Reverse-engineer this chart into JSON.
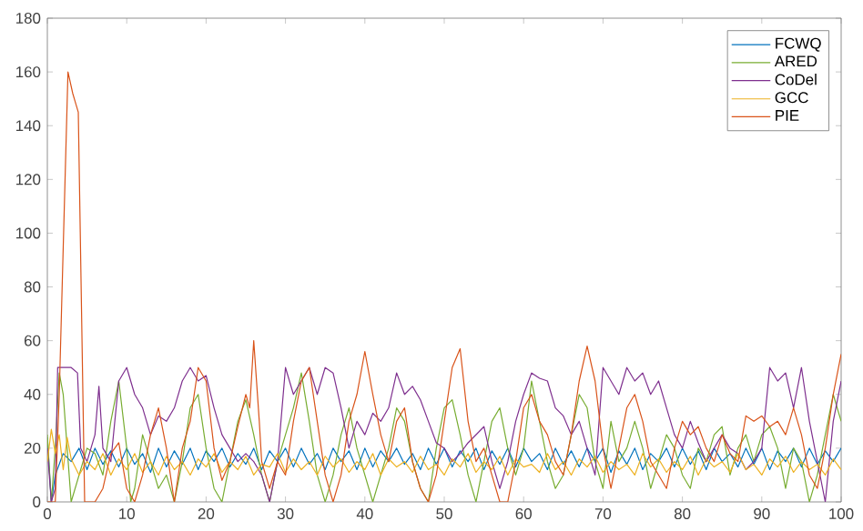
{
  "chart_data": {
    "type": "line",
    "xlim": [
      0,
      100
    ],
    "ylim": [
      0,
      180
    ],
    "xticks": [
      0,
      10,
      20,
      30,
      40,
      50,
      60,
      70,
      80,
      90,
      100
    ],
    "yticks": [
      0,
      20,
      40,
      60,
      80,
      100,
      120,
      140,
      160,
      180
    ],
    "grid": false,
    "legend": "top right",
    "line_style": "solid",
    "series": [
      {
        "name": "FCWQ",
        "color": "#0072bd",
        "x": [
          0,
          0.5,
          1,
          2,
          3,
          4,
          5,
          6,
          7,
          8,
          9,
          10,
          11,
          12,
          13,
          14,
          15,
          16,
          17,
          18,
          19,
          20,
          21,
          22,
          23,
          24,
          25,
          26,
          27,
          28,
          29,
          30,
          31,
          32,
          33,
          34,
          35,
          36,
          37,
          38,
          39,
          40,
          41,
          42,
          43,
          44,
          45,
          46,
          47,
          48,
          49,
          50,
          51,
          52,
          53,
          54,
          55,
          56,
          57,
          58,
          59,
          60,
          61,
          62,
          63,
          64,
          65,
          66,
          67,
          68,
          69,
          70,
          71,
          72,
          73,
          74,
          75,
          76,
          77,
          78,
          79,
          80,
          81,
          82,
          83,
          84,
          85,
          86,
          87,
          88,
          89,
          90,
          91,
          92,
          93,
          94,
          95,
          96,
          97,
          98,
          99,
          100
        ],
        "values": [
          24,
          0,
          10,
          18,
          15,
          20,
          12,
          20,
          14,
          19,
          13,
          20,
          14,
          18,
          11,
          20,
          13,
          19,
          14,
          20,
          12,
          19,
          15,
          20,
          13,
          18,
          14,
          20,
          12,
          19,
          15,
          20,
          13,
          20,
          14,
          18,
          12,
          20,
          15,
          19,
          12,
          20,
          13,
          19,
          15,
          20,
          14,
          18,
          12,
          20,
          14,
          20,
          13,
          19,
          15,
          20,
          12,
          19,
          14,
          20,
          13,
          20,
          15,
          18,
          12,
          20,
          14,
          19,
          13,
          20,
          15,
          20,
          11,
          19,
          14,
          20,
          12,
          18,
          15,
          20,
          13,
          20,
          14,
          19,
          12,
          20,
          15,
          18,
          13,
          20,
          14,
          20,
          12,
          19,
          15,
          20,
          13,
          20,
          14,
          19,
          15,
          20
        ]
      },
      {
        "name": "ARED",
        "color": "#77ac30",
        "x": [
          0,
          0.5,
          1,
          1.5,
          2,
          3,
          4,
          5,
          6,
          7,
          8,
          9,
          10,
          10.5,
          11,
          12,
          13,
          14,
          15,
          16,
          17,
          18,
          19,
          20,
          21,
          22,
          23,
          24,
          25,
          26,
          27,
          28,
          29,
          30,
          31,
          32,
          33,
          34,
          35,
          36,
          37,
          38,
          39,
          40,
          41,
          42,
          43,
          44,
          45,
          46,
          47,
          48,
          49,
          50,
          51,
          52,
          53,
          54,
          55,
          56,
          57,
          58,
          59,
          60,
          61,
          62,
          63,
          64,
          65,
          66,
          67,
          68,
          69,
          70,
          71,
          72,
          73,
          74,
          75,
          76,
          77,
          78,
          79,
          80,
          81,
          82,
          83,
          84,
          85,
          86,
          87,
          88,
          89,
          90,
          91,
          92,
          93,
          94,
          95,
          96,
          97,
          98,
          99,
          100
        ],
        "values": [
          25,
          0,
          20,
          48,
          40,
          0,
          10,
          20,
          18,
          10,
          30,
          45,
          20,
          0,
          5,
          25,
          15,
          5,
          10,
          0,
          15,
          35,
          40,
          20,
          5,
          0,
          15,
          30,
          38,
          25,
          10,
          0,
          15,
          25,
          35,
          48,
          30,
          10,
          0,
          10,
          25,
          35,
          20,
          10,
          0,
          10,
          20,
          35,
          30,
          15,
          5,
          0,
          20,
          35,
          38,
          25,
          10,
          0,
          15,
          30,
          35,
          20,
          10,
          20,
          45,
          30,
          15,
          5,
          10,
          25,
          40,
          35,
          15,
          5,
          30,
          15,
          20,
          30,
          20,
          5,
          15,
          25,
          20,
          10,
          5,
          20,
          15,
          25,
          28,
          10,
          20,
          25,
          15,
          25,
          28,
          20,
          5,
          20,
          15,
          0,
          10,
          25,
          40,
          30
        ]
      },
      {
        "name": "CoDel",
        "color": "#7e2f8e",
        "x": [
          0,
          0.5,
          1,
          1.3,
          3,
          3.8,
          4.2,
          5,
          6,
          6.5,
          7,
          8,
          9,
          10,
          11,
          12,
          13,
          14,
          15,
          16,
          17,
          18,
          19,
          20,
          21,
          22,
          23,
          24,
          25,
          26,
          27,
          28,
          29,
          30,
          31,
          32,
          33,
          34,
          35,
          36,
          37,
          38,
          39,
          40,
          41,
          42,
          43,
          44,
          45,
          46,
          47,
          48,
          49,
          50,
          51,
          52,
          53,
          54,
          55,
          56,
          57,
          58,
          59,
          60,
          61,
          62,
          63,
          64,
          65,
          66,
          67,
          68,
          69,
          70,
          71,
          72,
          73,
          74,
          75,
          76,
          77,
          78,
          79,
          80,
          81,
          82,
          83,
          84,
          85,
          86,
          87,
          88,
          89,
          90,
          91,
          92,
          93,
          94,
          95,
          96,
          97,
          98,
          99,
          100
        ],
        "values": [
          20,
          0,
          5,
          50,
          50,
          48,
          20,
          15,
          25,
          43,
          20,
          15,
          45,
          50,
          40,
          35,
          25,
          32,
          30,
          35,
          45,
          50,
          45,
          47,
          35,
          25,
          20,
          15,
          18,
          15,
          10,
          0,
          15,
          50,
          40,
          45,
          50,
          40,
          50,
          48,
          35,
          20,
          30,
          25,
          33,
          30,
          35,
          48,
          40,
          43,
          38,
          30,
          22,
          20,
          15,
          18,
          22,
          25,
          28,
          15,
          5,
          15,
          30,
          40,
          48,
          46,
          45,
          35,
          32,
          25,
          30,
          20,
          10,
          50,
          45,
          40,
          50,
          45,
          48,
          40,
          45,
          35,
          25,
          20,
          30,
          22,
          15,
          20,
          25,
          20,
          18,
          12,
          15,
          20,
          50,
          45,
          48,
          35,
          50,
          30,
          15,
          0,
          30,
          45
        ]
      },
      {
        "name": "GCC",
        "color": "#edb120",
        "x": [
          0,
          0.5,
          1,
          1.5,
          2,
          2.5,
          3,
          4,
          5,
          6,
          7,
          8,
          9,
          10,
          11,
          12,
          13,
          14,
          15,
          16,
          17,
          18,
          19,
          20,
          21,
          22,
          23,
          24,
          25,
          26,
          27,
          28,
          29,
          30,
          31,
          32,
          33,
          34,
          35,
          36,
          37,
          38,
          39,
          40,
          41,
          42,
          43,
          44,
          45,
          46,
          47,
          48,
          49,
          50,
          51,
          52,
          53,
          54,
          55,
          56,
          57,
          58,
          59,
          60,
          61,
          62,
          63,
          64,
          65,
          66,
          67,
          68,
          69,
          70,
          71,
          72,
          73,
          74,
          75,
          76,
          77,
          78,
          79,
          80,
          81,
          82,
          83,
          84,
          85,
          86,
          87,
          88,
          89,
          90,
          91,
          92,
          93,
          94,
          95,
          96,
          97,
          98,
          99,
          100
        ],
        "values": [
          15,
          27,
          18,
          25,
          12,
          24,
          16,
          10,
          15,
          12,
          18,
          10,
          16,
          12,
          18,
          11,
          15,
          10,
          17,
          12,
          15,
          10,
          16,
          13,
          18,
          11,
          15,
          12,
          17,
          10,
          14,
          13,
          18,
          11,
          16,
          12,
          15,
          10,
          17,
          13,
          16,
          11,
          15,
          12,
          18,
          10,
          16,
          13,
          15,
          11,
          17,
          12,
          14,
          10,
          16,
          13,
          18,
          11,
          15,
          12,
          17,
          10,
          16,
          13,
          14,
          11,
          18,
          12,
          15,
          10,
          16,
          13,
          17,
          11,
          15,
          12,
          14,
          10,
          18,
          13,
          16,
          11,
          15,
          12,
          17,
          10,
          16,
          13,
          15,
          11,
          18,
          12,
          14,
          10,
          16,
          13,
          17,
          11,
          15,
          12,
          14,
          10,
          16,
          12
        ]
      },
      {
        "name": "PIE",
        "color": "#d95319",
        "x": [
          0,
          1,
          1.5,
          2.6,
          3.2,
          3.6,
          3.9,
          4.7,
          6,
          7,
          8,
          9,
          10,
          11,
          12,
          13,
          14,
          15,
          16,
          17,
          18,
          19,
          20,
          21,
          22,
          23,
          24,
          25,
          25.5,
          26,
          26.7,
          27,
          28,
          29,
          30,
          31,
          32,
          33,
          34,
          35,
          36,
          37,
          38,
          39,
          40,
          41,
          42,
          43,
          44,
          45,
          46,
          47,
          48,
          49,
          50,
          51,
          52,
          53,
          54,
          55,
          56,
          57,
          58,
          59,
          60,
          61,
          62,
          63,
          64,
          65,
          66,
          67,
          68,
          69,
          70,
          71,
          72,
          73,
          74,
          75,
          76,
          77,
          78,
          79,
          80,
          81,
          82,
          83,
          84,
          85,
          86,
          87,
          88,
          89,
          90,
          91,
          92,
          93,
          94,
          95,
          96,
          97,
          98,
          99,
          100
        ],
        "values": [
          0,
          0,
          40,
          160,
          152,
          148,
          145,
          0,
          0,
          5,
          18,
          22,
          5,
          0,
          10,
          25,
          35,
          20,
          0,
          20,
          30,
          50,
          45,
          20,
          8,
          15,
          28,
          40,
          35,
          60,
          30,
          15,
          5,
          15,
          10,
          30,
          45,
          50,
          30,
          10,
          0,
          10,
          30,
          40,
          56,
          40,
          25,
          15,
          30,
          35,
          15,
          5,
          0,
          10,
          30,
          50,
          57,
          30,
          15,
          20,
          10,
          0,
          0,
          15,
          35,
          40,
          30,
          25,
          15,
          10,
          25,
          45,
          58,
          45,
          20,
          5,
          20,
          35,
          40,
          30,
          15,
          10,
          5,
          20,
          30,
          25,
          28,
          20,
          15,
          25,
          18,
          15,
          32,
          30,
          32,
          28,
          30,
          25,
          35,
          25,
          10,
          5,
          20,
          40,
          55
        ]
      }
    ]
  }
}
